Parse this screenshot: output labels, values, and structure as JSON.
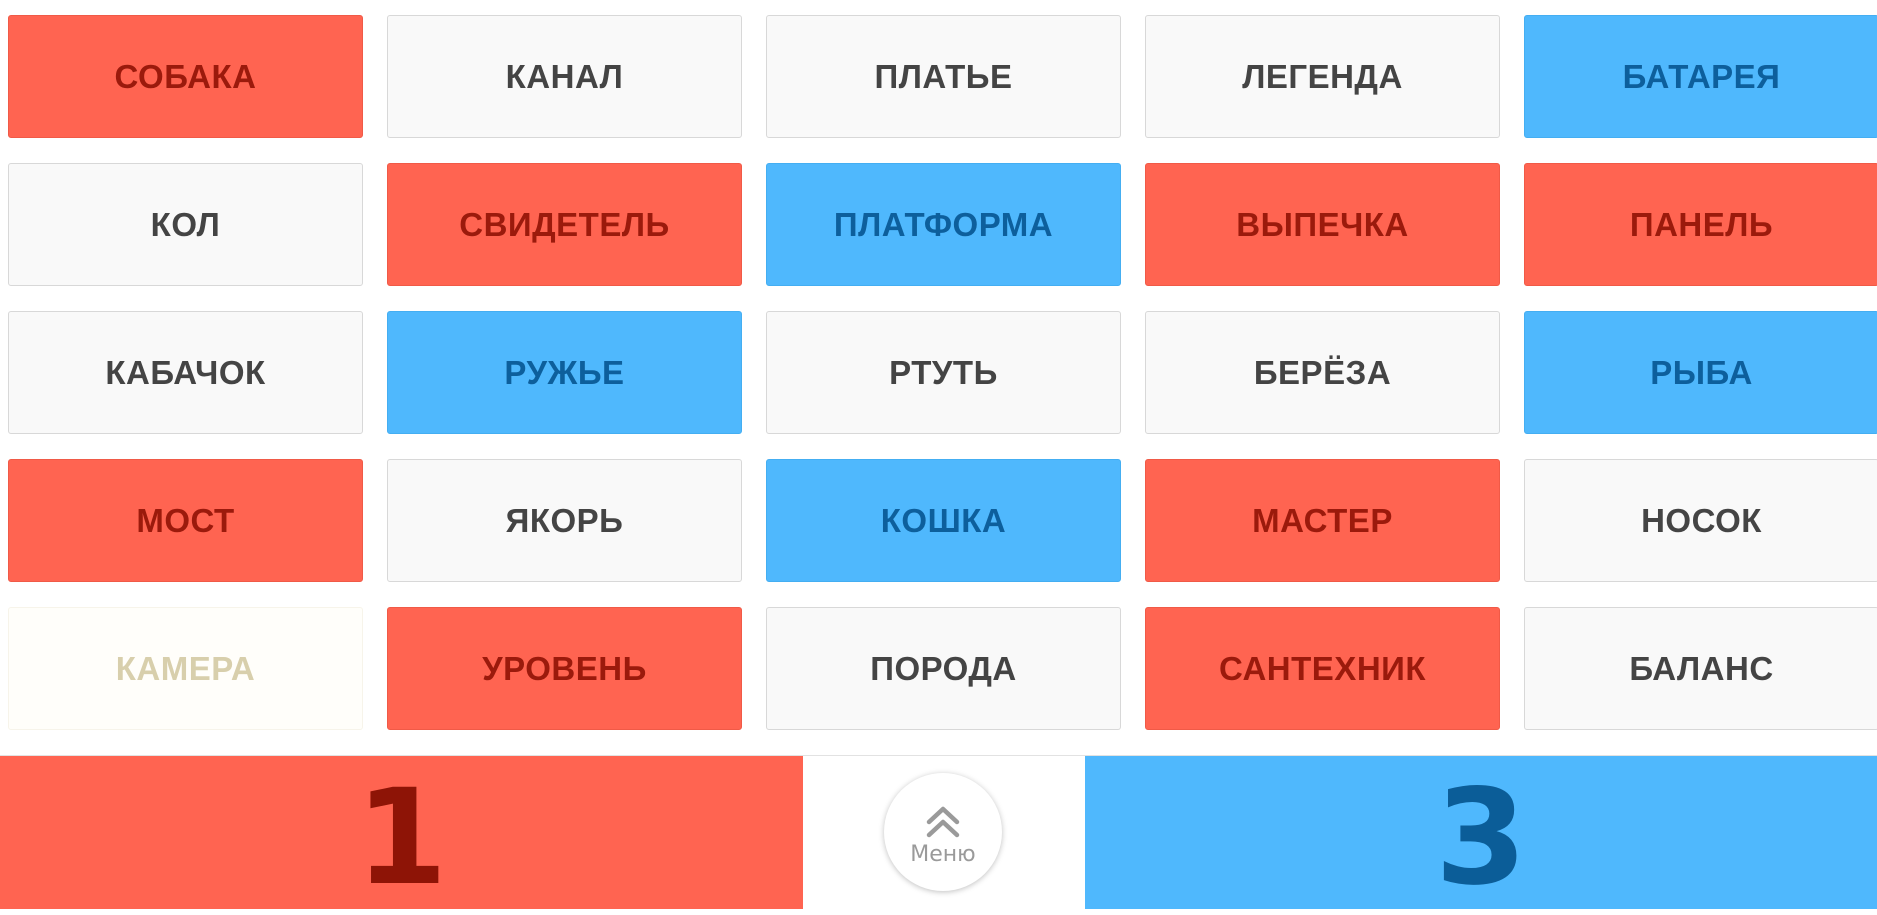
{
  "board": {
    "cards": [
      {
        "word": "СОБАКА",
        "team": "red"
      },
      {
        "word": "КАНАЛ",
        "team": "neutral"
      },
      {
        "word": "ПЛАТЬЕ",
        "team": "neutral"
      },
      {
        "word": "ЛЕГЕНДА",
        "team": "neutral"
      },
      {
        "word": "БАТАРЕЯ",
        "team": "blue"
      },
      {
        "word": "КОЛ",
        "team": "neutral"
      },
      {
        "word": "СВИДЕТЕЛЬ",
        "team": "red"
      },
      {
        "word": "ПЛАТФОРМА",
        "team": "blue"
      },
      {
        "word": "ВЫПЕЧКА",
        "team": "red"
      },
      {
        "word": "ПАНЕЛЬ",
        "team": "red"
      },
      {
        "word": "КАБАЧОК",
        "team": "neutral"
      },
      {
        "word": "РУЖЬЕ",
        "team": "blue"
      },
      {
        "word": "РТУТЬ",
        "team": "neutral"
      },
      {
        "word": "БЕРЁЗА",
        "team": "neutral"
      },
      {
        "word": "РЫБА",
        "team": "blue"
      },
      {
        "word": "МОСТ",
        "team": "red"
      },
      {
        "word": "ЯКОРЬ",
        "team": "neutral"
      },
      {
        "word": "КОШКА",
        "team": "blue"
      },
      {
        "word": "МАСТЕР",
        "team": "red"
      },
      {
        "word": "НОСОК",
        "team": "neutral"
      },
      {
        "word": "КАМЕРА",
        "team": "assassin-hidden"
      },
      {
        "word": "УРОВЕНЬ",
        "team": "red"
      },
      {
        "word": "ПОРОДА",
        "team": "neutral"
      },
      {
        "word": "САНТЕХНИК",
        "team": "red"
      },
      {
        "word": "БАЛАНС",
        "team": "neutral"
      }
    ]
  },
  "scores": {
    "red": "1",
    "blue": "3"
  },
  "menu": {
    "label": "Меню",
    "icon": "double-chevron-up-icon"
  },
  "colors": {
    "red": "#ff6451",
    "blue": "#4fb8fd",
    "neutral": "#f9f9f9"
  }
}
